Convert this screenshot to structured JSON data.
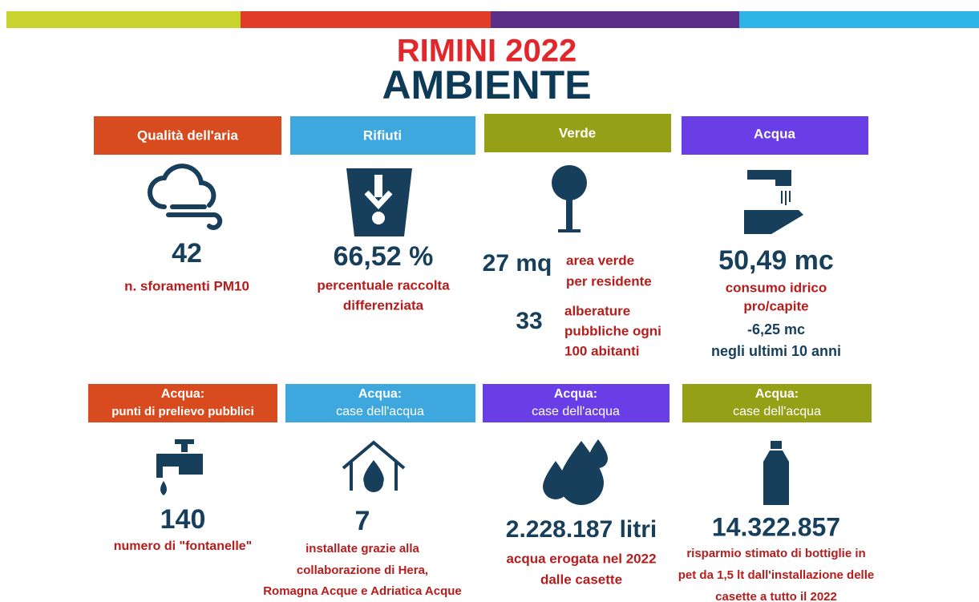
{
  "header": {
    "title": "RIMINI 2022",
    "subtitle": "AMBIENTE"
  },
  "row1": [
    {
      "header": "Qualità dell'aria",
      "value": "42",
      "lines": [
        "n. sforamenti PM10"
      ]
    },
    {
      "header": "Rifiuti",
      "value": "66,52 %",
      "lines": [
        "percentuale raccolta",
        "differenziata"
      ]
    },
    {
      "header": "Verde",
      "stats": [
        {
          "value": "27 mq",
          "lines": [
            "area verde",
            "per residente"
          ]
        },
        {
          "value": "33",
          "lines": [
            "alberature",
            "pubbliche ogni",
            "100 abitanti"
          ]
        }
      ]
    },
    {
      "header": "Acqua",
      "value": "50,49 mc",
      "lines": [
        "consumo idrico",
        "pro/capite"
      ],
      "change": "-6,25 mc",
      "change_note": "negli ultimi 10 anni"
    }
  ],
  "row2": [
    {
      "header": [
        "Acqua:",
        "punti di prelievo pubblici"
      ],
      "value": "140",
      "lines": [
        "numero di \"fontanelle\""
      ]
    },
    {
      "header": [
        "Acqua:",
        "case dell'acqua"
      ],
      "value": "7",
      "lines": [
        "installate grazie alla",
        "collaborazione di Hera,",
        "Romagna Acque e Adriatica Acque"
      ]
    },
    {
      "header": [
        "Acqua:",
        "case dell'acqua"
      ],
      "value": "2.228.187 litri",
      "lines": [
        "acqua erogata nel 2022",
        "dalle casette"
      ]
    },
    {
      "header": [
        "Acqua:",
        "case dell'acqua"
      ],
      "value": "14.322.857",
      "lines": [
        "risparmio stimato di bottiglie in",
        "pet da 1,5 lt dall'installazione delle",
        "casette a tutto il 2022"
      ]
    }
  ]
}
